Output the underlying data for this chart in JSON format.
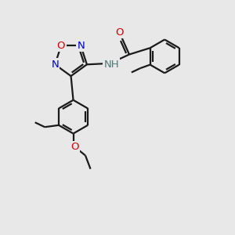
{
  "bg_color": "#e8e8e8",
  "bond_color": "#1a1a1a",
  "bond_width": 1.6,
  "atom_colors": {
    "N": "#0000cc",
    "O": "#cc0000",
    "C": "#1a1a1a",
    "H": "#4a7a7a"
  },
  "fs": 9.5,
  "fs_small": 8.5
}
